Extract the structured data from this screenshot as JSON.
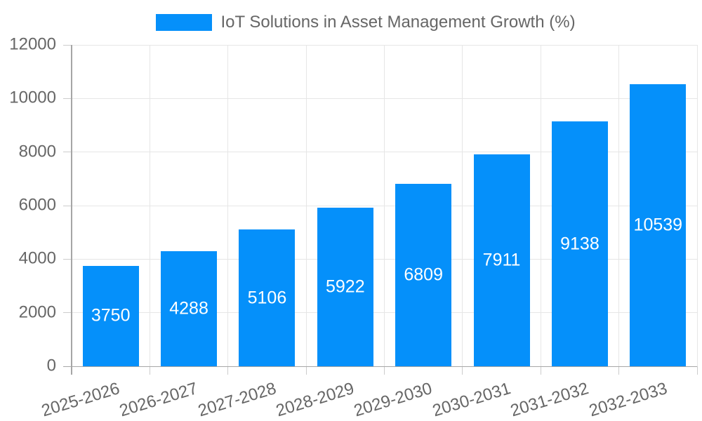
{
  "chart_data": {
    "type": "bar",
    "categories": [
      "2025-2026",
      "2026-2027",
      "2027-2028",
      "2028-2029",
      "2029-2030",
      "2030-2031",
      "2031-2032",
      "2032-2033"
    ],
    "series": [
      {
        "name": "IoT Solutions in Asset Management Growth (%)",
        "values": [
          3750,
          4288,
          5106,
          5922,
          6809,
          7911,
          9138,
          10539
        ]
      }
    ],
    "title": "",
    "xlabel": "",
    "ylabel": "",
    "ylim": [
      0,
      12000
    ],
    "ytick_step": 2000,
    "ytick_labels": [
      "0",
      "2000",
      "4000",
      "6000",
      "8000",
      "10000",
      "12000"
    ],
    "grid": true,
    "legend_position": "top",
    "value_labels_inside_bars": true,
    "colors": {
      "bar": "#0590fa",
      "value_label_text": "#ffffff",
      "tick_text": "#666666",
      "legend_text": "#666666",
      "gridline": "#e6e6e6",
      "axis_border": "#a6a6a6",
      "tick_mark": "#cccccc"
    }
  }
}
